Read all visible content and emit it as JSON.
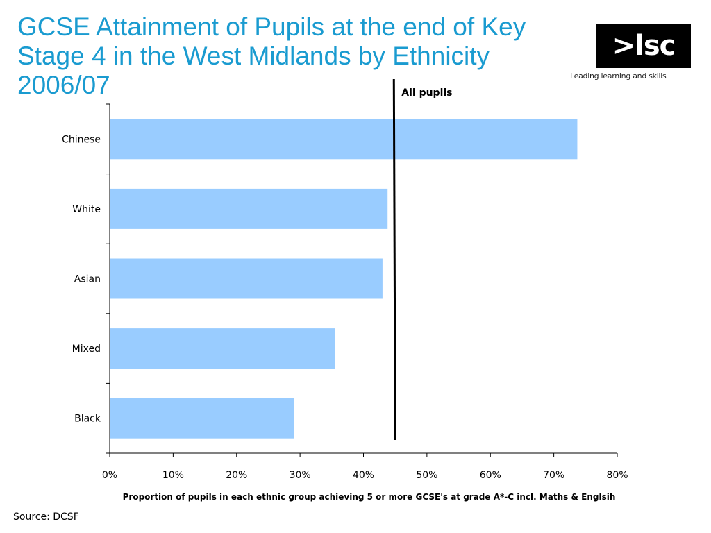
{
  "title": "GCSE Attainment of Pupils at the end of Key Stage 4 in the West Midlands by Ethnicity 2006/07",
  "logo": {
    "text": ">lsc",
    "tagline": "Leading learning and skills"
  },
  "source": "Source: DCSF",
  "colors": {
    "title": "#1a9bd0",
    "bar": "#99ccff",
    "reference_line": "#000000"
  },
  "chart_data": {
    "type": "bar",
    "orientation": "horizontal",
    "categories": [
      "Chinese",
      "White",
      "Asian",
      "Mixed",
      "Black"
    ],
    "values": [
      73.7,
      43.8,
      43.0,
      35.5,
      29.1
    ],
    "xlabel": "Proportion of pupils in each ethnic group achieving 5 or more GCSE's at grade A*-C incl. Maths & Englsih",
    "ylabel": "",
    "xlim": [
      0,
      80
    ],
    "xticks": [
      0,
      10,
      20,
      30,
      40,
      50,
      60,
      70,
      80
    ],
    "tick_labels": [
      "0%",
      "10%",
      "20%",
      "30%",
      "40%",
      "50%",
      "60%",
      "70%",
      "80%"
    ],
    "grid": false,
    "reference_line": {
      "value": 44.9,
      "label": "All pupils"
    }
  }
}
